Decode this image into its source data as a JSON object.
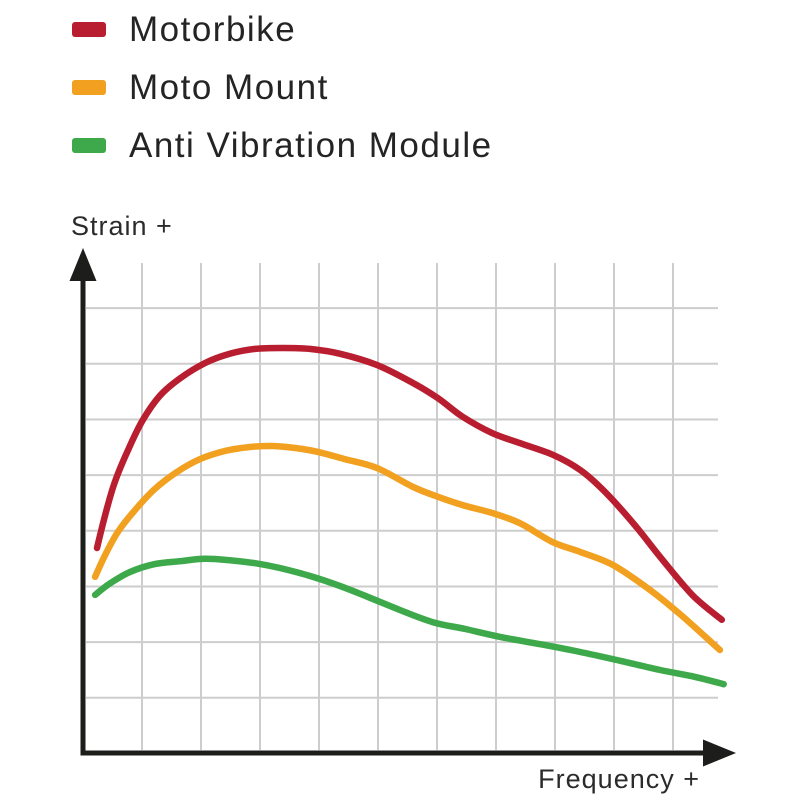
{
  "page": {
    "background": "#ffffff"
  },
  "legend": {
    "position": "top-left",
    "items": [
      {
        "label": "Motorbike",
        "color": "#b81e2f"
      },
      {
        "label": "Moto Mount",
        "color": "#f1a11f"
      },
      {
        "label": "Anti Vibration Module",
        "color": "#3ea94a"
      }
    ]
  },
  "axes": {
    "y_label": "Strain +",
    "x_label": "Frequency +",
    "axis_color": "#1d1d1b",
    "grid_color": "#cdcdcd",
    "ticks_labeled": false
  },
  "chart_data": {
    "type": "line",
    "title": "",
    "xlabel": "Frequency +",
    "ylabel": "Strain +",
    "xlim": [
      0,
      10.2
    ],
    "ylim": [
      0,
      10
    ],
    "grid": true,
    "x_gridlines": 10,
    "y_gridlines": 8,
    "legend_position": "top-left",
    "axis_units": "relative (no numeric ticks shown; 0–10 estimated scale)",
    "series": [
      {
        "name": "Motorbike",
        "color": "#b81e2f",
        "points": [
          [
            0.22,
            4.2
          ],
          [
            0.35,
            4.88
          ],
          [
            0.5,
            5.55
          ],
          [
            0.71,
            6.21
          ],
          [
            0.94,
            6.82
          ],
          [
            1.21,
            7.32
          ],
          [
            1.53,
            7.68
          ],
          [
            1.92,
            7.99
          ],
          [
            2.31,
            8.18
          ],
          [
            2.71,
            8.28
          ],
          [
            3.15,
            8.3
          ],
          [
            3.57,
            8.28
          ],
          [
            4.05,
            8.18
          ],
          [
            4.63,
            7.95
          ],
          [
            5.2,
            7.58
          ],
          [
            5.59,
            7.27
          ],
          [
            5.98,
            6.89
          ],
          [
            6.44,
            6.56
          ],
          [
            6.88,
            6.35
          ],
          [
            7.4,
            6.11
          ],
          [
            7.83,
            5.8
          ],
          [
            8.22,
            5.35
          ],
          [
            8.69,
            4.67
          ],
          [
            9.13,
            3.95
          ],
          [
            9.61,
            3.22
          ],
          [
            10.06,
            2.73
          ]
        ]
      },
      {
        "name": "Moto Mount",
        "color": "#f1a11f",
        "points": [
          [
            0.19,
            3.61
          ],
          [
            0.35,
            4.06
          ],
          [
            0.55,
            4.53
          ],
          [
            0.82,
            4.98
          ],
          [
            1.13,
            5.41
          ],
          [
            1.48,
            5.76
          ],
          [
            1.84,
            6.02
          ],
          [
            2.24,
            6.19
          ],
          [
            2.63,
            6.27
          ],
          [
            2.98,
            6.29
          ],
          [
            3.34,
            6.25
          ],
          [
            3.7,
            6.17
          ],
          [
            4.13,
            6.02
          ],
          [
            4.63,
            5.84
          ],
          [
            5.2,
            5.45
          ],
          [
            5.59,
            5.25
          ],
          [
            5.98,
            5.08
          ],
          [
            6.44,
            4.92
          ],
          [
            6.88,
            4.71
          ],
          [
            7.4,
            4.32
          ],
          [
            7.83,
            4.12
          ],
          [
            8.35,
            3.85
          ],
          [
            8.93,
            3.34
          ],
          [
            9.45,
            2.79
          ],
          [
            10.03,
            2.11
          ]
        ]
      },
      {
        "name": "Anti Vibration Module",
        "color": "#3ea94a",
        "points": [
          [
            0.19,
            3.24
          ],
          [
            0.43,
            3.48
          ],
          [
            0.74,
            3.71
          ],
          [
            1.13,
            3.87
          ],
          [
            1.53,
            3.93
          ],
          [
            1.92,
            3.98
          ],
          [
            2.31,
            3.95
          ],
          [
            2.71,
            3.89
          ],
          [
            3.1,
            3.79
          ],
          [
            3.57,
            3.63
          ],
          [
            4.05,
            3.42
          ],
          [
            4.52,
            3.18
          ],
          [
            4.99,
            2.93
          ],
          [
            5.51,
            2.68
          ],
          [
            6.02,
            2.54
          ],
          [
            6.57,
            2.38
          ],
          [
            7.2,
            2.23
          ],
          [
            7.83,
            2.07
          ],
          [
            8.46,
            1.89
          ],
          [
            9.09,
            1.7
          ],
          [
            9.64,
            1.56
          ],
          [
            10.09,
            1.41
          ]
        ]
      }
    ]
  }
}
